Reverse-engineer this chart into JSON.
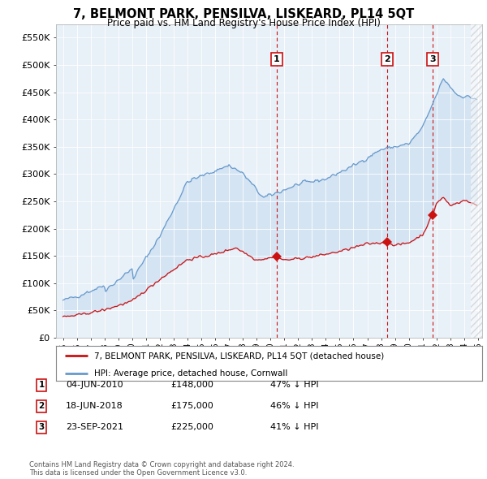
{
  "title": "7, BELMONT PARK, PENSILVA, LISKEARD, PL14 5QT",
  "subtitle": "Price paid vs. HM Land Registry's House Price Index (HPI)",
  "ylim": [
    0,
    575000
  ],
  "yticks": [
    0,
    50000,
    100000,
    150000,
    200000,
    250000,
    300000,
    350000,
    400000,
    450000,
    500000,
    550000
  ],
  "ytick_labels": [
    "£0",
    "£50K",
    "£100K",
    "£150K",
    "£200K",
    "£250K",
    "£300K",
    "£350K",
    "£400K",
    "£450K",
    "£500K",
    "£550K"
  ],
  "plot_bg_color": "#e8f0f8",
  "hpi_color": "#6699cc",
  "price_color": "#cc1111",
  "shade_color": "#dce8f4",
  "transaction_color": "#cc1111",
  "transactions": [
    {
      "label": "1",
      "date": 2010.43,
      "price": 148000
    },
    {
      "label": "2",
      "date": 2018.46,
      "price": 175000
    },
    {
      "label": "3",
      "date": 2021.73,
      "price": 225000
    }
  ],
  "legend_property_label": "7, BELMONT PARK, PENSILVA, LISKEARD, PL14 5QT (detached house)",
  "legend_hpi_label": "HPI: Average price, detached house, Cornwall",
  "table_rows": [
    {
      "num": "1",
      "date": "04-JUN-2010",
      "price": "£148,000",
      "hpi": "47% ↓ HPI"
    },
    {
      "num": "2",
      "date": "18-JUN-2018",
      "price": "£175,000",
      "hpi": "46% ↓ HPI"
    },
    {
      "num": "3",
      "date": "23-SEP-2021",
      "price": "£225,000",
      "hpi": "41% ↓ HPI"
    }
  ],
  "footnote": "Contains HM Land Registry data © Crown copyright and database right 2024.\nThis data is licensed under the Open Government Licence v3.0.",
  "xmin": 1994.5,
  "xmax": 2025.3
}
